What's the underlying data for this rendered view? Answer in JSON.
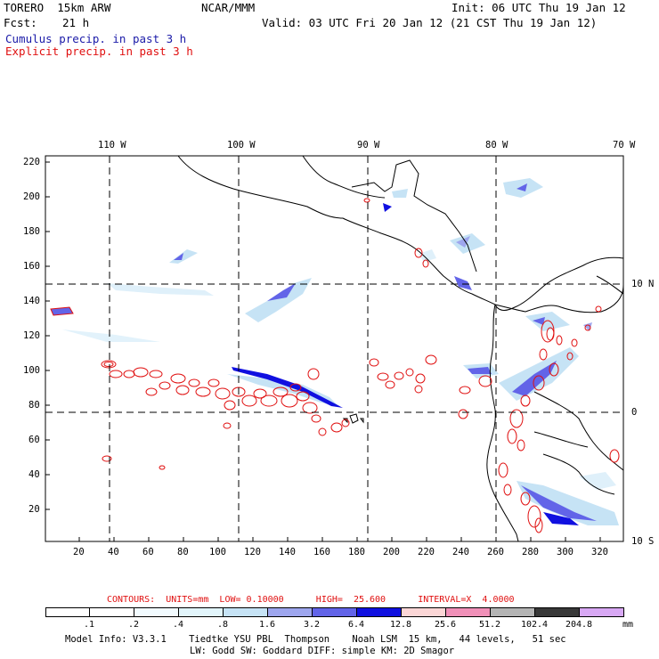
{
  "header": {
    "model": "TORERO  15km ARW",
    "org": "NCAR/MMM",
    "init": "Init: 06 UTC Thu 19 Jan 12",
    "fcst_label": "Fcst:",
    "fcst_value": "21 h",
    "valid": "Valid: 03 UTC Fri 20 Jan 12 (21 CST Thu 19 Jan 12)",
    "line_cumulus": "Cumulus precip. in past 3 h",
    "line_explicit": "Explicit precip. in past 3 h",
    "colors": {
      "cumulus": "#1a1aa8",
      "explicit": "#e01010"
    }
  },
  "map": {
    "top_labels": [
      "110 W",
      "100 W",
      "90 W",
      "80 W",
      "70 W"
    ],
    "right_labels": [
      "10 N",
      "0",
      "10 S"
    ],
    "y_ticks": [
      "220",
      "200",
      "180",
      "160",
      "140",
      "120",
      "100",
      "80",
      "60",
      "40",
      "20"
    ],
    "x_ticks": [
      "20",
      "40",
      "60",
      "80",
      "100",
      "120",
      "140",
      "160",
      "180",
      "200",
      "220",
      "240",
      "260",
      "280",
      "300",
      "320"
    ]
  },
  "caption": {
    "contours": "CONTOURS:  UNITS=mm  LOW= 0.10000      HIGH=  25.600      INTERVAL=X  4.0000"
  },
  "colorbar": {
    "labels": [
      ".1",
      ".2",
      ".4",
      ".8",
      "1.6",
      "3.2",
      "6.4",
      "12.8",
      "25.6",
      "51.2",
      "102.4",
      "204.8"
    ],
    "unit": "mm",
    "colors": [
      "#ffffff",
      "#ffffff",
      "#f2fbff",
      "#e2f5fb",
      "#c6e3f5",
      "#9ea6ee",
      "#6264e8",
      "#1010e0",
      "#fbd6d6",
      "#f090b8",
      "#b4b4b4",
      "#383838",
      "#d8a8f4"
    ]
  },
  "footer": {
    "line1": "Model Info: V3.3.1    Tiedtke YSU PBL  Thompson    Noah LSM  15 km,   44 levels,   51 sec",
    "line2": "LW: Godd SW: Goddard DIFF: simple KM: 2D Smagor"
  }
}
